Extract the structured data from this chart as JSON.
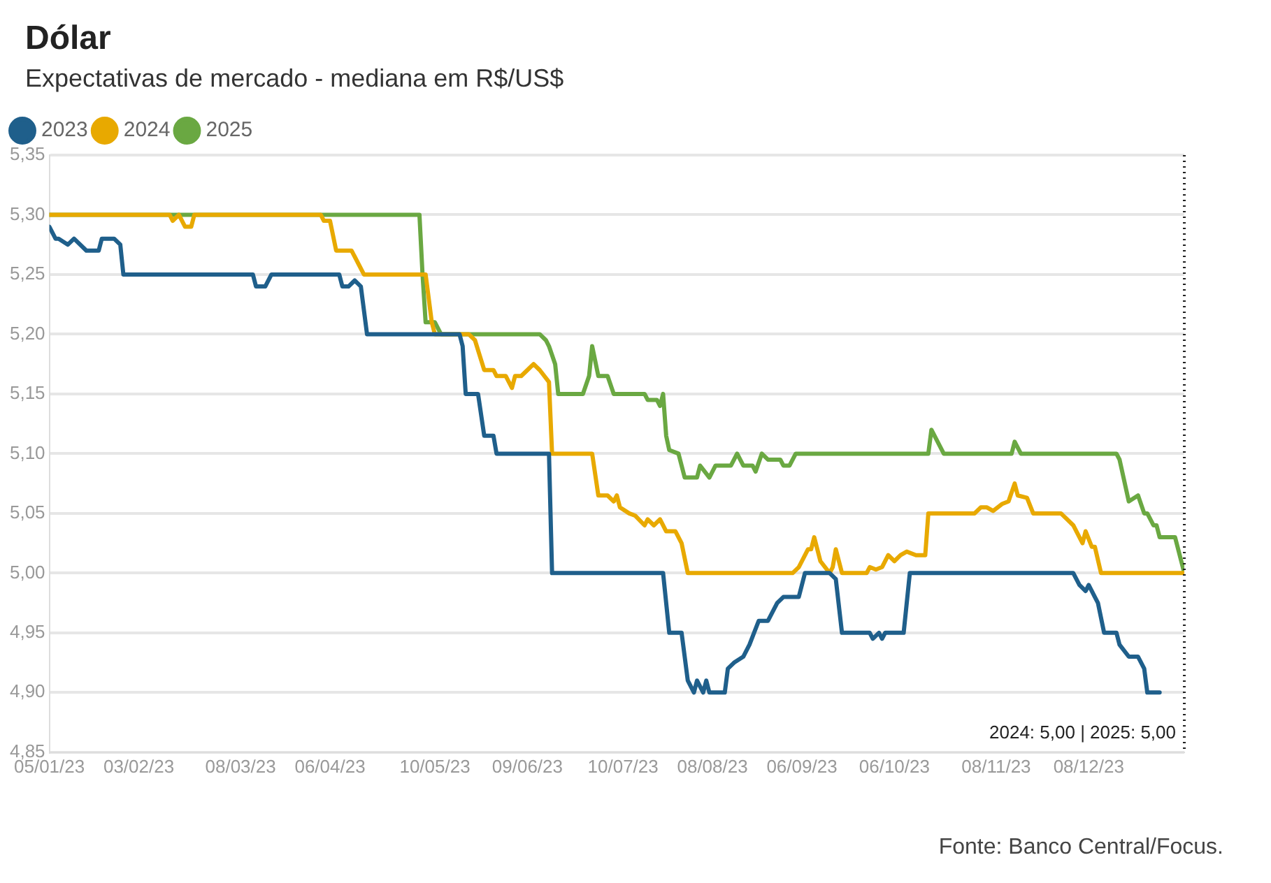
{
  "chart_data": {
    "type": "line",
    "title": "Dólar",
    "subtitle": "Expectativas de mercado - mediana em R$/US$",
    "annotations": [
      "Fonte: Banco Central/Focus."
    ],
    "legend": "top left",
    "grid": "y",
    "marker": "none",
    "line_style": "solid",
    "xlim": [
      "2023-01-05",
      "2024-01-08"
    ],
    "xticks": [
      {
        "value": "2023-01-05",
        "label": "05/01/23"
      },
      {
        "value": "2023-02-03",
        "label": "03/02/23"
      },
      {
        "value": "2023-03-08",
        "label": "08/03/23"
      },
      {
        "value": "2023-04-06",
        "label": "06/04/23"
      },
      {
        "value": "2023-05-10",
        "label": "10/05/23"
      },
      {
        "value": "2023-06-09",
        "label": "09/06/23"
      },
      {
        "value": "2023-07-10",
        "label": "10/07/23"
      },
      {
        "value": "2023-08-08",
        "label": "08/08/23"
      },
      {
        "value": "2023-09-06",
        "label": "06/09/23"
      },
      {
        "value": "2023-10-06",
        "label": "06/10/23"
      },
      {
        "value": "2023-11-08",
        "label": "08/11/23"
      },
      {
        "value": "2023-12-08",
        "label": "08/12/23"
      }
    ],
    "ylim": [
      4.85,
      5.35
    ],
    "yticks": [
      {
        "value": 4.85,
        "label": "4,85"
      },
      {
        "value": 4.9,
        "label": "4,90"
      },
      {
        "value": 4.95,
        "label": "4,95"
      },
      {
        "value": 5.0,
        "label": "5,00"
      },
      {
        "value": 5.05,
        "label": "5,05"
      },
      {
        "value": 5.1,
        "label": "5,10"
      },
      {
        "value": 5.15,
        "label": "5,15"
      },
      {
        "value": 5.2,
        "label": "5,20"
      },
      {
        "value": 5.25,
        "label": "5,25"
      },
      {
        "value": 5.3,
        "label": "5,30"
      },
      {
        "value": 5.35,
        "label": "5,35"
      }
    ],
    "ref_lines": [
      {
        "axis": "x",
        "value": "2024-01-08",
        "label": "2024: 5,00 | 2025: 5,00",
        "color": "#222222",
        "line_style": "dotted"
      }
    ],
    "series": [
      {
        "name": "2023",
        "color": "#1f5f8b",
        "x": [
          "2023-01-05",
          "2023-01-07",
          "2023-01-08",
          "2023-01-11",
          "2023-01-13",
          "2023-01-17",
          "2023-01-21",
          "2023-01-22",
          "2023-01-26",
          "2023-01-28",
          "2023-01-29",
          "2023-03-12",
          "2023-03-13",
          "2023-03-16",
          "2023-03-18",
          "2023-04-09",
          "2023-04-10",
          "2023-04-12",
          "2023-04-14",
          "2023-04-16",
          "2023-04-18",
          "2023-05-18",
          "2023-05-19",
          "2023-05-20",
          "2023-05-24",
          "2023-05-26",
          "2023-05-29",
          "2023-05-30",
          "2023-06-16",
          "2023-06-17",
          "2023-07-23",
          "2023-07-25",
          "2023-07-29",
          "2023-07-31",
          "2023-08-02",
          "2023-08-03",
          "2023-08-05",
          "2023-08-06",
          "2023-08-07",
          "2023-08-12",
          "2023-08-13",
          "2023-08-15",
          "2023-08-18",
          "2023-08-20",
          "2023-08-23",
          "2023-08-26",
          "2023-08-29",
          "2023-08-31",
          "2023-09-05",
          "2023-09-07",
          "2023-09-15",
          "2023-09-17",
          "2023-09-19",
          "2023-09-28",
          "2023-09-29",
          "2023-10-01",
          "2023-10-02",
          "2023-10-03",
          "2023-10-09",
          "2023-10-11",
          "2023-12-03",
          "2023-12-05",
          "2023-12-07",
          "2023-12-08",
          "2023-12-10",
          "2023-12-11",
          "2023-12-13",
          "2023-12-17",
          "2023-12-18",
          "2023-12-21",
          "2023-12-24",
          "2023-12-26",
          "2023-12-27",
          "2023-12-31"
        ],
        "values": [
          5.29,
          5.28,
          5.28,
          5.275,
          5.28,
          5.27,
          5.27,
          5.28,
          5.28,
          5.275,
          5.25,
          5.25,
          5.24,
          5.24,
          5.25,
          5.25,
          5.24,
          5.24,
          5.245,
          5.24,
          5.2,
          5.2,
          5.19,
          5.15,
          5.15,
          5.115,
          5.115,
          5.1,
          5.1,
          5.0,
          5.0,
          4.95,
          4.95,
          4.91,
          4.9,
          4.91,
          4.9,
          4.91,
          4.9,
          4.9,
          4.92,
          4.925,
          4.93,
          4.94,
          4.96,
          4.96,
          4.975,
          4.98,
          4.98,
          5.0,
          5.0,
          4.995,
          4.95,
          4.95,
          4.945,
          4.95,
          4.945,
          4.95,
          4.95,
          5.0,
          5.0,
          4.99,
          4.985,
          4.99,
          4.98,
          4.975,
          4.95,
          4.95,
          4.94,
          4.93,
          4.93,
          4.92,
          4.9,
          4.9
        ]
      },
      {
        "name": "2024",
        "color": "#e8a900",
        "x": [
          "2023-01-05",
          "2023-02-13",
          "2023-02-14",
          "2023-02-16",
          "2023-02-18",
          "2023-02-20",
          "2023-02-21",
          "2023-04-03",
          "2023-04-04",
          "2023-04-06",
          "2023-04-08",
          "2023-04-13",
          "2023-04-17",
          "2023-05-07",
          "2023-05-09",
          "2023-05-10",
          "2023-05-21",
          "2023-05-23",
          "2023-05-26",
          "2023-05-29",
          "2023-05-30",
          "2023-06-02",
          "2023-06-04",
          "2023-06-05",
          "2023-06-07",
          "2023-06-09",
          "2023-06-11",
          "2023-06-13",
          "2023-06-16",
          "2023-06-17",
          "2023-06-30",
          "2023-07-02",
          "2023-07-05",
          "2023-07-07",
          "2023-07-08",
          "2023-07-09",
          "2023-07-12",
          "2023-07-14",
          "2023-07-17",
          "2023-07-18",
          "2023-07-20",
          "2023-07-22",
          "2023-07-24",
          "2023-07-27",
          "2023-07-29",
          "2023-07-31",
          "2023-09-03",
          "2023-09-05",
          "2023-09-08",
          "2023-09-09",
          "2023-09-10",
          "2023-09-12",
          "2023-09-15",
          "2023-09-16",
          "2023-09-17",
          "2023-09-19",
          "2023-09-27",
          "2023-09-28",
          "2023-09-30",
          "2023-10-02",
          "2023-10-04",
          "2023-10-06",
          "2023-10-08",
          "2023-10-10",
          "2023-10-13",
          "2023-10-16",
          "2023-10-17",
          "2023-11-01",
          "2023-11-03",
          "2023-11-05",
          "2023-11-07",
          "2023-11-10",
          "2023-11-12",
          "2023-11-14",
          "2023-11-15",
          "2023-11-18",
          "2023-11-20",
          "2023-11-29",
          "2023-12-01",
          "2023-12-03",
          "2023-12-06",
          "2023-12-07",
          "2023-12-09",
          "2023-12-10",
          "2023-12-12",
          "2024-01-08"
        ],
        "values": [
          5.3,
          5.3,
          5.295,
          5.3,
          5.29,
          5.29,
          5.3,
          5.3,
          5.295,
          5.295,
          5.27,
          5.27,
          5.25,
          5.25,
          5.21,
          5.2,
          5.2,
          5.195,
          5.17,
          5.17,
          5.165,
          5.165,
          5.155,
          5.165,
          5.165,
          5.17,
          5.175,
          5.17,
          5.16,
          5.1,
          5.1,
          5.065,
          5.065,
          5.06,
          5.065,
          5.055,
          5.05,
          5.048,
          5.04,
          5.045,
          5.04,
          5.045,
          5.035,
          5.035,
          5.025,
          5.0,
          5.0,
          5.005,
          5.02,
          5.02,
          5.03,
          5.01,
          5.0,
          5.005,
          5.02,
          5.0,
          5.0,
          5.005,
          5.003,
          5.005,
          5.015,
          5.01,
          5.015,
          5.018,
          5.015,
          5.015,
          5.05,
          5.05,
          5.055,
          5.055,
          5.052,
          5.058,
          5.06,
          5.075,
          5.065,
          5.063,
          5.05,
          5.05,
          5.045,
          5.04,
          5.025,
          5.035,
          5.022,
          5.022,
          5.0,
          5.0
        ]
      },
      {
        "name": "2025",
        "color": "#6aa842",
        "x": [
          "2023-01-05",
          "2023-05-04",
          "2023-05-05",
          "2023-05-06",
          "2023-05-07",
          "2023-05-10",
          "2023-05-12",
          "2023-06-13",
          "2023-06-15",
          "2023-06-16",
          "2023-06-18",
          "2023-06-19",
          "2023-06-27",
          "2023-06-29",
          "2023-06-30",
          "2023-07-02",
          "2023-07-05",
          "2023-07-07",
          "2023-07-17",
          "2023-07-18",
          "2023-07-21",
          "2023-07-22",
          "2023-07-23",
          "2023-07-24",
          "2023-07-25",
          "2023-07-28",
          "2023-07-30",
          "2023-08-03",
          "2023-08-04",
          "2023-08-07",
          "2023-08-09",
          "2023-08-14",
          "2023-08-16",
          "2023-08-18",
          "2023-08-21",
          "2023-08-22",
          "2023-08-24",
          "2023-08-26",
          "2023-08-30",
          "2023-08-31",
          "2023-09-02",
          "2023-09-04",
          "2023-10-17",
          "2023-10-18",
          "2023-10-22",
          "2023-10-24",
          "2023-11-13",
          "2023-11-14",
          "2023-11-16",
          "2023-12-17",
          "2023-12-18",
          "2023-12-21",
          "2023-12-24",
          "2023-12-26",
          "2023-12-27",
          "2023-12-29",
          "2023-12-30",
          "2023-12-31",
          "2024-01-05",
          "2024-01-08"
        ],
        "values": [
          5.3,
          5.3,
          5.3,
          5.25,
          5.21,
          5.21,
          5.2,
          5.2,
          5.195,
          5.19,
          5.175,
          5.15,
          5.15,
          5.165,
          5.19,
          5.165,
          5.165,
          5.15,
          5.15,
          5.145,
          5.145,
          5.14,
          5.15,
          5.115,
          5.103,
          5.1,
          5.08,
          5.08,
          5.09,
          5.08,
          5.09,
          5.09,
          5.1,
          5.09,
          5.09,
          5.085,
          5.1,
          5.095,
          5.095,
          5.09,
          5.09,
          5.1,
          5.1,
          5.12,
          5.1,
          5.1,
          5.1,
          5.11,
          5.1,
          5.1,
          5.095,
          5.06,
          5.065,
          5.05,
          5.05,
          5.04,
          5.04,
          5.03,
          5.03,
          5.0
        ]
      }
    ]
  }
}
